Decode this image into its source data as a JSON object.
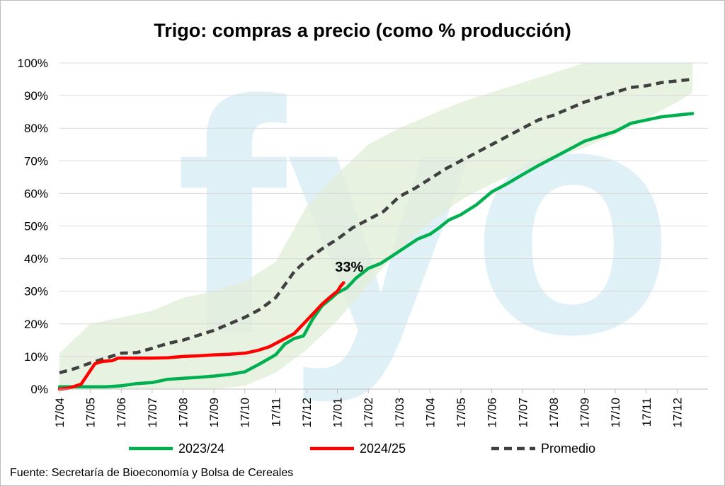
{
  "chart_data": {
    "type": "line",
    "title": "Trigo: compras a precio (como % producción)",
    "xlabel": "",
    "ylabel": "",
    "x_tick_labels": [
      "17/04",
      "17/05",
      "17/06",
      "17/07",
      "17/08",
      "17/09",
      "17/10",
      "17/11",
      "17/12",
      "17/01",
      "17/02",
      "17/03",
      "17/04",
      "17/05",
      "17/06",
      "17/07",
      "17/08",
      "17/09",
      "17/10",
      "17/11",
      "17/12"
    ],
    "y_tick_labels": [
      "0%",
      "10%",
      "20%",
      "30%",
      "40%",
      "50%",
      "60%",
      "70%",
      "80%",
      "90%",
      "100%"
    ],
    "ylim": [
      0,
      100
    ],
    "xlim_months": [
      0,
      21
    ],
    "grid": true,
    "legend_position": "bottom",
    "watermark": "fyo",
    "band": {
      "description": "rango histórico",
      "color": "#e2efd9",
      "upper": [
        [
          0,
          11
        ],
        [
          1,
          20
        ],
        [
          2,
          22
        ],
        [
          3,
          24
        ],
        [
          4,
          28
        ],
        [
          5,
          30
        ],
        [
          6,
          33
        ],
        [
          7,
          39
        ],
        [
          8,
          56
        ],
        [
          9,
          66
        ],
        [
          10,
          75
        ],
        [
          11,
          80
        ],
        [
          12,
          84
        ],
        [
          13,
          88
        ],
        [
          14,
          91
        ],
        [
          15,
          94
        ],
        [
          16,
          97
        ],
        [
          17,
          100
        ],
        [
          18,
          100
        ],
        [
          19,
          100
        ],
        [
          20,
          100
        ],
        [
          20.5,
          100
        ]
      ],
      "lower": [
        [
          0,
          0
        ],
        [
          1,
          0
        ],
        [
          2,
          0
        ],
        [
          3,
          0
        ],
        [
          4,
          0
        ],
        [
          5,
          0
        ],
        [
          6,
          1
        ],
        [
          7,
          5
        ],
        [
          8,
          12
        ],
        [
          9,
          21
        ],
        [
          10,
          32
        ],
        [
          11,
          43
        ],
        [
          12,
          51
        ],
        [
          13,
          58
        ],
        [
          14,
          63
        ],
        [
          15,
          67
        ],
        [
          16,
          71
        ],
        [
          17,
          74
        ],
        [
          18,
          78
        ],
        [
          19,
          83
        ],
        [
          20,
          88
        ],
        [
          20.5,
          91
        ]
      ]
    },
    "series": [
      {
        "name": "2023/24",
        "color": "#00b050",
        "style": "solid",
        "points": [
          [
            0,
            0.7
          ],
          [
            1,
            0.7
          ],
          [
            1.5,
            0.7
          ],
          [
            2,
            1
          ],
          [
            2.5,
            1.7
          ],
          [
            3,
            2
          ],
          [
            3.5,
            3
          ],
          [
            4,
            3.3
          ],
          [
            4.5,
            3.6
          ],
          [
            5,
            4
          ],
          [
            5.5,
            4.5
          ],
          [
            6,
            5.3
          ],
          [
            6.5,
            7.8
          ],
          [
            7,
            10.5
          ],
          [
            7.3,
            13.8
          ],
          [
            7.6,
            15.5
          ],
          [
            7.9,
            16.3
          ],
          [
            8.2,
            21.5
          ],
          [
            8.5,
            25.5
          ],
          [
            8.8,
            27.8
          ],
          [
            9,
            29.5
          ],
          [
            9.3,
            31
          ],
          [
            9.6,
            34
          ],
          [
            10,
            37
          ],
          [
            10.4,
            38.5
          ],
          [
            10.8,
            41
          ],
          [
            11.2,
            43.5
          ],
          [
            11.6,
            46
          ],
          [
            12,
            47.5
          ],
          [
            12.3,
            49.5
          ],
          [
            12.6,
            51.8
          ],
          [
            13,
            53.5
          ],
          [
            13.5,
            56.5
          ],
          [
            14,
            60.5
          ],
          [
            14.5,
            63
          ],
          [
            15,
            65.8
          ],
          [
            15.5,
            68.5
          ],
          [
            16,
            71
          ],
          [
            16.5,
            73.5
          ],
          [
            17,
            76
          ],
          [
            17.5,
            77.5
          ],
          [
            18,
            79
          ],
          [
            18.5,
            81.5
          ],
          [
            19,
            82.5
          ],
          [
            19.5,
            83.5
          ],
          [
            20,
            84
          ],
          [
            20.5,
            84.5
          ]
        ]
      },
      {
        "name": "2024/25",
        "color": "#ff0000",
        "style": "solid",
        "points": [
          [
            0,
            0
          ],
          [
            0.3,
            0.3
          ],
          [
            0.7,
            1.5
          ],
          [
            0.95,
            5
          ],
          [
            1.15,
            7.8
          ],
          [
            1.4,
            8.5
          ],
          [
            1.7,
            8.7
          ],
          [
            1.9,
            9.5
          ],
          [
            2.5,
            9.5
          ],
          [
            3,
            9.5
          ],
          [
            3.5,
            9.6
          ],
          [
            4,
            10
          ],
          [
            4.5,
            10.2
          ],
          [
            5,
            10.5
          ],
          [
            5.5,
            10.7
          ],
          [
            6,
            11
          ],
          [
            6.4,
            11.8
          ],
          [
            6.8,
            13
          ],
          [
            7.2,
            15
          ],
          [
            7.6,
            17
          ],
          [
            7.9,
            20
          ],
          [
            8.2,
            23
          ],
          [
            8.5,
            26
          ],
          [
            8.8,
            28.5
          ],
          [
            9,
            30
          ],
          [
            9.1,
            31.5
          ],
          [
            9.2,
            32.6
          ]
        ]
      },
      {
        "name": "Promedio",
        "color": "#404040",
        "style": "dashed",
        "points": [
          [
            0,
            5
          ],
          [
            0.5,
            6.3
          ],
          [
            1,
            8
          ],
          [
            1.5,
            9.5
          ],
          [
            2,
            11
          ],
          [
            2.5,
            11.2
          ],
          [
            3,
            12.5
          ],
          [
            3.5,
            14
          ],
          [
            4,
            15
          ],
          [
            4.5,
            16.5
          ],
          [
            5,
            18
          ],
          [
            5.5,
            20
          ],
          [
            6,
            22
          ],
          [
            6.5,
            24.5
          ],
          [
            7,
            28
          ],
          [
            7.3,
            32
          ],
          [
            7.6,
            36
          ],
          [
            8,
            39.5
          ],
          [
            8.5,
            43
          ],
          [
            9,
            46
          ],
          [
            9.5,
            49.5
          ],
          [
            10,
            52
          ],
          [
            10.5,
            54.5
          ],
          [
            11,
            59
          ],
          [
            11.5,
            61.5
          ],
          [
            12,
            64.5
          ],
          [
            12.5,
            67.5
          ],
          [
            13,
            70
          ],
          [
            13.5,
            72.5
          ],
          [
            14,
            75
          ],
          [
            14.5,
            77.5
          ],
          [
            15,
            80
          ],
          [
            15.5,
            82.5
          ],
          [
            16,
            84
          ],
          [
            16.5,
            86
          ],
          [
            17,
            88
          ],
          [
            17.5,
            89.5
          ],
          [
            18,
            91
          ],
          [
            18.5,
            92.5
          ],
          [
            19,
            93
          ],
          [
            19.5,
            94
          ],
          [
            20,
            94.5
          ],
          [
            20.5,
            95
          ]
        ]
      }
    ],
    "annotations": [
      {
        "text": "33%",
        "x": 9.2,
        "y": 33,
        "series": "2024/25"
      }
    ],
    "source": "Fuente: Secretaría de Bioeconomía y Bolsa de Cereales"
  }
}
